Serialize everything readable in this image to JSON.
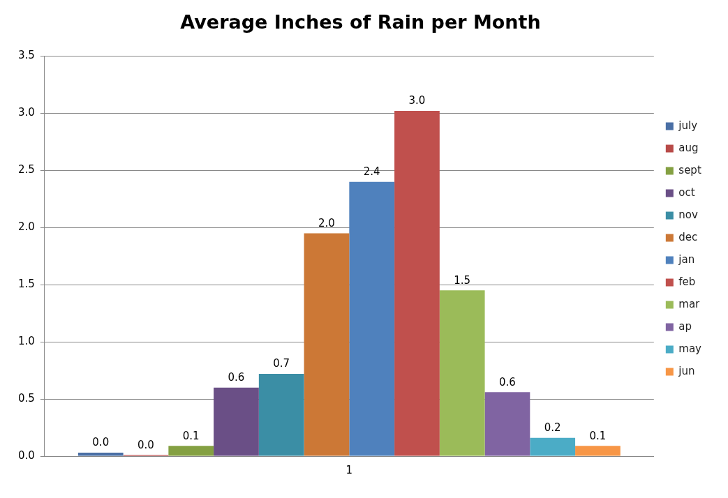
{
  "chart_data": {
    "type": "bar",
    "title": "Average Inches of Rain per Month",
    "categories": [
      "1"
    ],
    "series": [
      {
        "name": "july",
        "color": "#4a6fa5",
        "values": [
          0.03
        ],
        "value_labels": [
          "0.0"
        ]
      },
      {
        "name": "aug",
        "color": "#b84a48",
        "values": [
          0.01
        ],
        "value_labels": [
          "0.0"
        ]
      },
      {
        "name": "sept",
        "color": "#84a042",
        "values": [
          0.09
        ],
        "value_labels": [
          "0.1"
        ]
      },
      {
        "name": "oct",
        "color": "#6a4f86",
        "values": [
          0.6
        ],
        "value_labels": [
          "0.6"
        ]
      },
      {
        "name": "nov",
        "color": "#3b8ea5",
        "values": [
          0.72
        ],
        "value_labels": [
          "0.7"
        ]
      },
      {
        "name": "dec",
        "color": "#cc7836",
        "values": [
          1.95
        ],
        "value_labels": [
          "2.0"
        ]
      },
      {
        "name": "jan",
        "color": "#4f81bd",
        "values": [
          2.4
        ],
        "value_labels": [
          "2.4"
        ]
      },
      {
        "name": "feb",
        "color": "#c0504d",
        "values": [
          3.02
        ],
        "value_labels": [
          "3.0"
        ]
      },
      {
        "name": "mar",
        "color": "#9bbb59",
        "values": [
          1.45
        ],
        "value_labels": [
          "1.5"
        ]
      },
      {
        "name": "ap",
        "color": "#8064a2",
        "values": [
          0.56
        ],
        "value_labels": [
          "0.6"
        ]
      },
      {
        "name": "may",
        "color": "#4bacc6",
        "values": [
          0.16
        ],
        "value_labels": [
          "0.2"
        ]
      },
      {
        "name": "jun",
        "color": "#f79646",
        "values": [
          0.09
        ],
        "value_labels": [
          "0.1"
        ]
      }
    ],
    "ylim": [
      0,
      3.5
    ],
    "yticks": [
      "0.0",
      0.5,
      "1.0",
      1.5,
      "2.0",
      2.5,
      "3.0",
      3.5
    ],
    "grid": "y",
    "legend": "right"
  }
}
